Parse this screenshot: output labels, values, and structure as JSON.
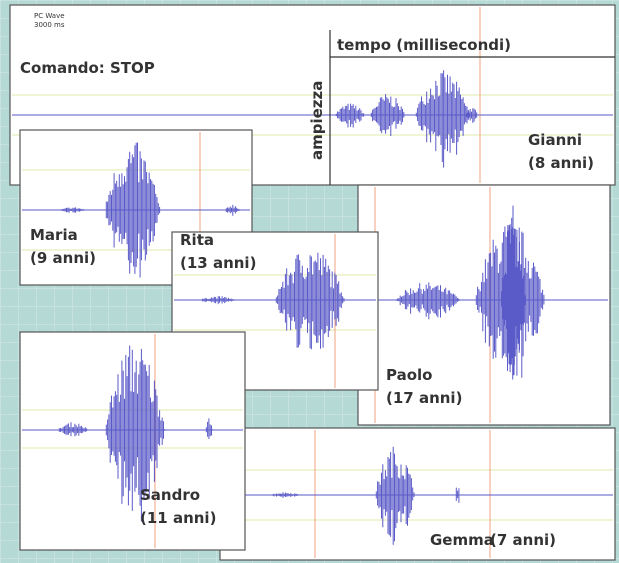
{
  "header": {
    "app": "PC Wave",
    "duration": "3000 ms",
    "command": "Comando: STOP",
    "x_axis": "tempo (millisecondi)",
    "y_axis": "ampiezza"
  },
  "speakers": [
    {
      "name": "Gianni",
      "age": "(8 anni)"
    },
    {
      "name": "Paolo",
      "age": "(17 anni)"
    },
    {
      "name": "Maria",
      "age": "(9 anni)"
    },
    {
      "name": "Rita",
      "age": "(13 anni)"
    },
    {
      "name": "Gemma",
      "age": "(7 anni)"
    },
    {
      "name": "Sandro",
      "age": "(11 anni)"
    }
  ]
}
